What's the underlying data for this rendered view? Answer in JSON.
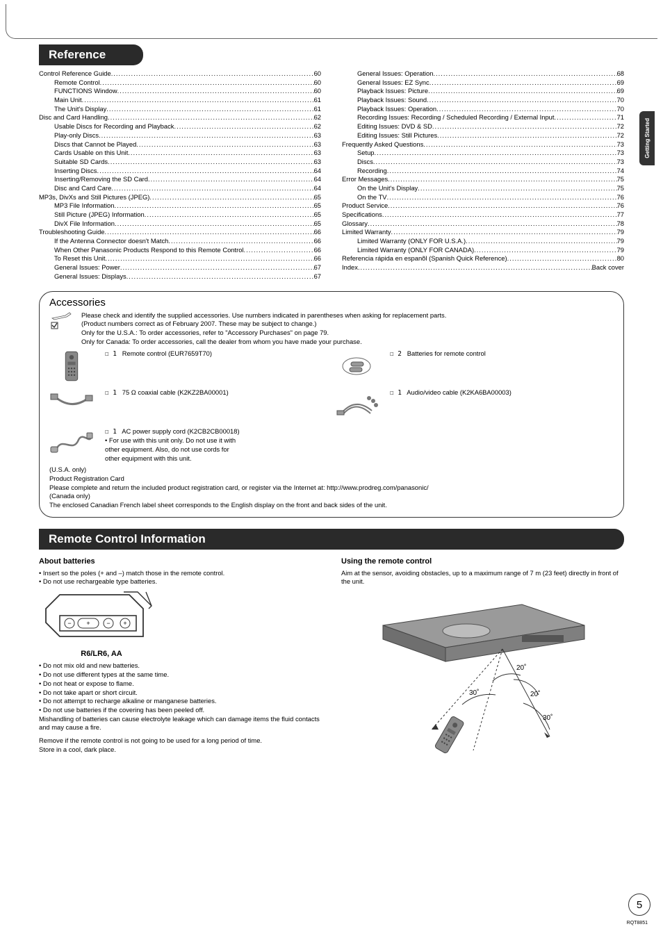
{
  "side_tab": "Getting Started",
  "reference": {
    "title": "Reference",
    "left": [
      {
        "label": "Control Reference Guide",
        "page": "60",
        "indent": 0
      },
      {
        "label": "Remote Control",
        "page": "60",
        "indent": 1
      },
      {
        "label": "FUNCTIONS Window",
        "page": "60",
        "indent": 1
      },
      {
        "label": "Main Unit",
        "page": "61",
        "indent": 1
      },
      {
        "label": "The Unit's Display",
        "page": "61",
        "indent": 1
      },
      {
        "label": "Disc and Card Handling",
        "page": "62",
        "indent": 0
      },
      {
        "label": "Usable Discs for Recording and Playback",
        "page": "62",
        "indent": 1
      },
      {
        "label": "Play-only Discs",
        "page": "63",
        "indent": 1
      },
      {
        "label": "Discs that Cannot be Played",
        "page": "63",
        "indent": 1
      },
      {
        "label": "Cards Usable on this Unit",
        "page": "63",
        "indent": 1
      },
      {
        "label": "Suitable SD Cards",
        "page": "63",
        "indent": 1
      },
      {
        "label": "Inserting Discs",
        "page": "64",
        "indent": 1
      },
      {
        "label": "Inserting/Removing the SD Card",
        "page": "64",
        "indent": 1
      },
      {
        "label": "Disc and Card Care",
        "page": "64",
        "indent": 1
      },
      {
        "label": "MP3s, DivXs and Still Pictures (JPEG)",
        "page": "65",
        "indent": 0
      },
      {
        "label": "MP3 File Information",
        "page": "65",
        "indent": 1
      },
      {
        "label": "Still Picture (JPEG) Information",
        "page": "65",
        "indent": 1
      },
      {
        "label": "DivX File Information",
        "page": "65",
        "indent": 1
      },
      {
        "label": "Troubleshooting Guide",
        "page": "66",
        "indent": 0
      },
      {
        "label": "If the Antenna Connector doesn't Match",
        "page": "66",
        "indent": 1
      },
      {
        "label": "When Other Panasonic Products Respond to this Remote Control",
        "page": "66",
        "indent": 1
      },
      {
        "label": "To Reset this Unit",
        "page": "66",
        "indent": 1
      },
      {
        "label": "General Issues: Power",
        "page": "67",
        "indent": 1
      },
      {
        "label": "General Issues: Displays",
        "page": "67",
        "indent": 1
      }
    ],
    "right": [
      {
        "label": "General Issues: Operation",
        "page": "68",
        "indent": 1
      },
      {
        "label": "General Issues: EZ Sync",
        "page": "69",
        "indent": 1
      },
      {
        "label": "Playback Issues: Picture",
        "page": "69",
        "indent": 1
      },
      {
        "label": "Playback Issues: Sound",
        "page": "70",
        "indent": 1
      },
      {
        "label": "Playback Issues: Operation",
        "page": "70",
        "indent": 1
      },
      {
        "label": "Recording Issues: Recording / Scheduled Recording / External Input",
        "page": "71",
        "indent": 1
      },
      {
        "label": "Editing Issues: DVD & SD",
        "page": "72",
        "indent": 1
      },
      {
        "label": "Editing Issues: Still Pictures",
        "page": "72",
        "indent": 1
      },
      {
        "label": "Frequently Asked Questions",
        "page": "73",
        "indent": 0
      },
      {
        "label": "Setup",
        "page": "73",
        "indent": 1
      },
      {
        "label": "Discs",
        "page": "73",
        "indent": 1
      },
      {
        "label": "Recording",
        "page": "74",
        "indent": 1
      },
      {
        "label": "Error Messages",
        "page": "75",
        "indent": 0
      },
      {
        "label": "On the Unit's Display",
        "page": "75",
        "indent": 1
      },
      {
        "label": "On the TV",
        "page": "76",
        "indent": 1
      },
      {
        "label": "Product Service",
        "page": "76",
        "indent": 0
      },
      {
        "label": "Specifications",
        "page": "77",
        "indent": 0
      },
      {
        "label": "Glossary",
        "page": "78",
        "indent": 0
      },
      {
        "label": "Limited Warranty",
        "page": "79",
        "indent": 0
      },
      {
        "label": "Limited Warranty (ONLY FOR U.S.A.)",
        "page": "79",
        "indent": 1
      },
      {
        "label": "Limited Warranty (ONLY FOR CANADA)",
        "page": "79",
        "indent": 1
      },
      {
        "label": "Referencia rápida en espanõl (Spanish Quick Reference)",
        "page": "80",
        "indent": 0
      },
      {
        "label": "Index",
        "page": "Back cover",
        "indent": 0
      }
    ]
  },
  "accessories": {
    "title": "Accessories",
    "intro1": "Please check and identify the supplied accessories. Use numbers indicated in parentheses when asking for replacement parts.",
    "intro2": "(Product numbers correct as of February 2007. These may be subject to change.)",
    "intro3": "Only for the U.S.A.: To order accessories, refer to \"Accessory Purchases\" on page 79.",
    "intro4": "Only for Canada:   To order accessories, call the dealer from whom you have made your purchase.",
    "items": [
      {
        "qty": "☐ 1",
        "label": "Remote control (EUR7659T70)"
      },
      {
        "qty": "☐ 2",
        "label": "Batteries for remote control"
      },
      {
        "qty": "☐ 1",
        "label": "75 Ω coaxial cable (K2KZ2BA00001)"
      },
      {
        "qty": "☐ 1",
        "label": "Audio/video cable (K2KA6BA00003)"
      },
      {
        "qty": "☐ 1",
        "label": "AC power supply cord (K2CB2CB00018)"
      }
    ],
    "ac_note1": "• For use with this unit only. Do not use it with",
    "ac_note2": "  other equipment. Also, do not use cords for",
    "ac_note3": "  other equipment with this unit.",
    "usa_only": "(U.S.A. only)",
    "reg_card": "Product Registration Card",
    "reg_text": "Please complete and return the included product registration card, or register via the Internet at: http://www.prodreg.com/panasonic/",
    "canada_only": "(Canada only)",
    "canada_text": "The enclosed Canadian French label sheet corresponds to the English display on the front and back sides of the unit."
  },
  "remote": {
    "title": "Remote Control Information",
    "batteries_head": "About batteries",
    "batt_b1": "Insert so the poles (+ and –) match those in the remote control.",
    "batt_b2": "Do not use rechargeable type batteries.",
    "batt_label": "R6/LR6, AA",
    "warn": [
      "Do not mix old and new batteries.",
      "Do not use different types at the same time.",
      "Do not heat or expose to flame.",
      "Do not take apart or short circuit.",
      "Do not attempt to recharge alkaline or manganese batteries.",
      "Do not use batteries if the covering has been peeled off."
    ],
    "mishandle": "Mishandling of batteries can cause electrolyte leakage which can damage items the fluid contacts and may cause a fire.",
    "remove": "Remove if the remote control is not going to be used for a long period of time.",
    "store": "Store in a cool, dark place.",
    "using_head": "Using the remote control",
    "using_text": "Aim at the sensor, avoiding obstacles, up to a maximum range of 7 m (23 feet) directly in front of the unit.",
    "angles": {
      "a": "20˚",
      "b": "20˚",
      "c": "30˚",
      "d": "30˚"
    }
  },
  "page_number": "5",
  "footer_code": "RQT8851",
  "colors": {
    "header_bg": "#2a2a2a",
    "header_fg": "#ffffff",
    "border": "#333333",
    "tab_bg": "#333333"
  }
}
